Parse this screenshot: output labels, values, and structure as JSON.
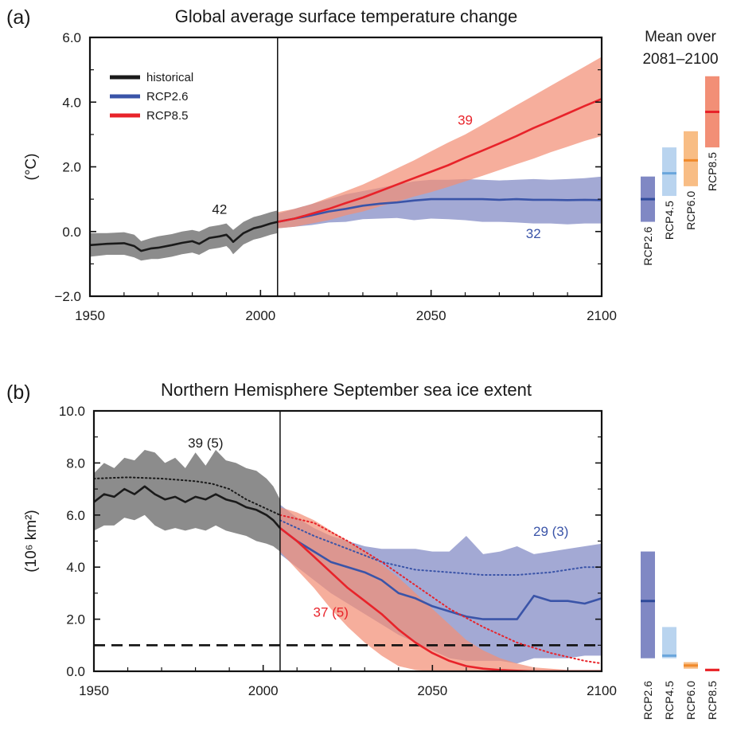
{
  "chart_data": [
    {
      "type": "line",
      "panel_label": "(a)",
      "title": "Global average surface temperature change",
      "ylabel": "(°C)",
      "xlim": [
        1950,
        2100
      ],
      "ylim": [
        -2.0,
        6.0
      ],
      "x_ticks": [
        "1950",
        "2000",
        "2050",
        "2100"
      ],
      "y_ticks": [
        "−2.0",
        "0.0",
        "2.0",
        "4.0",
        "6.0"
      ],
      "y_tick_values": [
        -2,
        0,
        2,
        4,
        6
      ],
      "x_tick_values": [
        1950,
        2000,
        2050,
        2100
      ],
      "divider_year": 2005,
      "legend": {
        "placement": "top-left",
        "entries": [
          {
            "label": "historical",
            "color": "#1a1a1a"
          },
          {
            "label": "RCP2.6",
            "color": "#3a54a8"
          },
          {
            "label": "RCP8.5",
            "color": "#e8232a"
          }
        ]
      },
      "series": [
        {
          "key": "historical",
          "color": "#1a1a1a",
          "band_color": "#8c8c8c",
          "x": [
            1950,
            1955,
            1960,
            1963,
            1965,
            1968,
            1970,
            1974,
            1977,
            1980,
            1982,
            1985,
            1988,
            1990,
            1991,
            1992,
            1995,
            1998,
            2000,
            2003,
            2005
          ],
          "values": [
            -0.42,
            -0.38,
            -0.36,
            -0.45,
            -0.6,
            -0.52,
            -0.5,
            -0.42,
            -0.35,
            -0.3,
            -0.38,
            -0.2,
            -0.15,
            -0.1,
            -0.2,
            -0.32,
            -0.05,
            0.1,
            0.15,
            0.25,
            0.3
          ],
          "band_low": [
            -0.78,
            -0.72,
            -0.72,
            -0.8,
            -0.9,
            -0.85,
            -0.85,
            -0.78,
            -0.7,
            -0.65,
            -0.72,
            -0.55,
            -0.5,
            -0.45,
            -0.55,
            -0.7,
            -0.4,
            -0.25,
            -0.2,
            -0.1,
            -0.05
          ],
          "band_high": [
            -0.05,
            -0.05,
            -0.02,
            -0.1,
            -0.3,
            -0.2,
            -0.15,
            -0.08,
            0.0,
            0.05,
            0.0,
            0.15,
            0.2,
            0.25,
            0.15,
            0.05,
            0.3,
            0.45,
            0.5,
            0.6,
            0.65
          ]
        },
        {
          "key": "RCP2.6",
          "color": "#3a54a8",
          "band_color": "#8088c4",
          "x": [
            2005,
            2010,
            2015,
            2020,
            2025,
            2030,
            2035,
            2040,
            2045,
            2050,
            2055,
            2060,
            2065,
            2070,
            2075,
            2080,
            2085,
            2090,
            2095,
            2100
          ],
          "values": [
            0.3,
            0.4,
            0.5,
            0.62,
            0.7,
            0.8,
            0.86,
            0.9,
            0.96,
            1.0,
            1.0,
            1.0,
            1.0,
            0.98,
            1.0,
            0.98,
            0.98,
            0.97,
            0.98,
            0.97
          ],
          "band_low": [
            0.1,
            0.15,
            0.2,
            0.28,
            0.3,
            0.38,
            0.4,
            0.42,
            0.35,
            0.4,
            0.38,
            0.35,
            0.3,
            0.3,
            0.28,
            0.25,
            0.25,
            0.22,
            0.25,
            0.25
          ],
          "band_high": [
            0.55,
            0.7,
            0.85,
            1.0,
            1.15,
            1.25,
            1.35,
            1.45,
            1.55,
            1.6,
            1.6,
            1.62,
            1.6,
            1.58,
            1.6,
            1.62,
            1.6,
            1.62,
            1.65,
            1.7
          ]
        },
        {
          "key": "RCP8.5",
          "color": "#e8232a",
          "band_color": "#f28f76",
          "x": [
            2005,
            2010,
            2015,
            2020,
            2025,
            2030,
            2035,
            2040,
            2045,
            2050,
            2055,
            2060,
            2065,
            2070,
            2075,
            2080,
            2085,
            2090,
            2095,
            2100
          ],
          "values": [
            0.3,
            0.4,
            0.55,
            0.7,
            0.88,
            1.05,
            1.25,
            1.45,
            1.65,
            1.85,
            2.05,
            2.28,
            2.5,
            2.72,
            2.95,
            3.2,
            3.42,
            3.65,
            3.88,
            4.1
          ],
          "band_low": [
            0.1,
            0.15,
            0.25,
            0.35,
            0.5,
            0.62,
            0.78,
            0.92,
            1.08,
            1.22,
            1.38,
            1.55,
            1.72,
            1.9,
            2.08,
            2.25,
            2.45,
            2.62,
            2.8,
            2.95
          ],
          "band_high": [
            0.6,
            0.7,
            0.85,
            1.05,
            1.25,
            1.45,
            1.7,
            1.95,
            2.2,
            2.48,
            2.75,
            3.0,
            3.3,
            3.6,
            3.9,
            4.2,
            4.5,
            4.8,
            5.1,
            5.4
          ]
        }
      ],
      "annotations": [
        {
          "text": "42",
          "x": 1988,
          "y": 0.55,
          "color": "#1a1a1a"
        },
        {
          "text": "39",
          "x": 2060,
          "y": 3.3,
          "color": "#e8232a"
        },
        {
          "text": "32",
          "x": 2080,
          "y": -0.2,
          "color": "#3a54a8"
        }
      ],
      "side_bars": {
        "title": "Mean over",
        "subtitle": "2081–2100",
        "bars": [
          {
            "label": "RCP2.6",
            "low": 0.3,
            "high": 1.7,
            "mean": 1.0,
            "color": "#8088c4",
            "line_color": "#2e4a9a"
          },
          {
            "label": "RCP4.5",
            "low": 1.1,
            "high": 2.6,
            "mean": 1.8,
            "color": "#b9d4ef",
            "line_color": "#6aa6dc"
          },
          {
            "label": "RCP6.0",
            "low": 1.4,
            "high": 3.1,
            "mean": 2.2,
            "color": "#f8bd85",
            "line_color": "#f08a2b"
          },
          {
            "label": "RCP8.5",
            "low": 2.6,
            "high": 4.8,
            "mean": 3.7,
            "color": "#f28f76",
            "line_color": "#e8232a"
          }
        ]
      }
    },
    {
      "type": "line",
      "panel_label": "(b)",
      "title": "Northern Hemisphere September sea ice extent",
      "ylabel": "(10⁶ km²)",
      "xlim": [
        1950,
        2100
      ],
      "ylim": [
        0.0,
        10.0
      ],
      "x_ticks": [
        "1950",
        "2000",
        "2050",
        "2100"
      ],
      "y_ticks": [
        "0.0",
        "2.0",
        "4.0",
        "6.0",
        "8.0",
        "10.0"
      ],
      "y_tick_values": [
        0,
        2,
        4,
        6,
        8,
        10
      ],
      "x_tick_values": [
        1950,
        2000,
        2050,
        2100
      ],
      "divider_year": 2005,
      "threshold": 1.0,
      "series": [
        {
          "key": "historical",
          "color": "#1a1a1a",
          "band_color": "#8c8c8c",
          "x": [
            1950,
            1953,
            1956,
            1959,
            1962,
            1965,
            1968,
            1971,
            1974,
            1977,
            1980,
            1983,
            1986,
            1989,
            1992,
            1995,
            1998,
            2001,
            2003,
            2005
          ],
          "values": [
            6.5,
            6.8,
            6.7,
            7.0,
            6.8,
            7.1,
            6.8,
            6.6,
            6.7,
            6.5,
            6.7,
            6.6,
            6.8,
            6.6,
            6.5,
            6.3,
            6.2,
            6.0,
            5.8,
            5.5
          ],
          "band_low": [
            5.4,
            5.6,
            5.6,
            5.9,
            5.8,
            6.0,
            5.6,
            5.4,
            5.5,
            5.4,
            5.5,
            5.4,
            5.6,
            5.4,
            5.3,
            5.2,
            5.0,
            4.9,
            4.8,
            4.6
          ],
          "band_high": [
            7.6,
            8.0,
            7.8,
            8.2,
            8.1,
            8.5,
            8.4,
            8.0,
            8.2,
            7.8,
            8.4,
            7.9,
            8.5,
            8.1,
            8.0,
            7.8,
            7.7,
            7.4,
            7.1,
            6.6
          ]
        },
        {
          "key": "historical-observed",
          "style": "dotted",
          "color": "#1a1a1a",
          "x": [
            1950,
            1960,
            1970,
            1980,
            1985,
            1990,
            1995,
            2000,
            2005
          ],
          "values": [
            7.4,
            7.45,
            7.4,
            7.3,
            7.2,
            7.0,
            6.6,
            6.3,
            6.0
          ]
        },
        {
          "key": "RCP2.6",
          "color": "#3a54a8",
          "band_color": "#8088c4",
          "x": [
            2005,
            2010,
            2015,
            2020,
            2025,
            2030,
            2035,
            2040,
            2045,
            2050,
            2055,
            2060,
            2065,
            2070,
            2075,
            2080,
            2085,
            2090,
            2095,
            2100
          ],
          "values": [
            5.5,
            5.0,
            4.6,
            4.2,
            4.0,
            3.8,
            3.5,
            3.0,
            2.8,
            2.5,
            2.3,
            2.1,
            2.0,
            2.0,
            2.0,
            2.9,
            2.7,
            2.7,
            2.6,
            2.8
          ],
          "band_low": [
            4.5,
            4.0,
            3.5,
            3.0,
            2.6,
            2.2,
            1.8,
            1.4,
            1.1,
            0.8,
            0.5,
            0.4,
            0.4,
            0.4,
            0.3,
            0.5,
            0.5,
            0.5,
            0.6,
            0.6
          ],
          "band_high": [
            6.4,
            5.9,
            5.5,
            5.2,
            5.0,
            4.8,
            4.7,
            4.7,
            4.7,
            4.6,
            4.6,
            5.2,
            4.5,
            4.6,
            4.8,
            4.5,
            4.6,
            4.7,
            4.8,
            4.9
          ]
        },
        {
          "key": "RCP2.6-dotted",
          "style": "dotted",
          "color": "#3a54a8",
          "x": [
            2005,
            2015,
            2025,
            2035,
            2045,
            2055,
            2065,
            2075,
            2085,
            2095,
            2100
          ],
          "values": [
            5.8,
            5.2,
            4.7,
            4.2,
            3.9,
            3.8,
            3.7,
            3.7,
            3.8,
            4.0,
            4.0
          ]
        },
        {
          "key": "RCP8.5",
          "color": "#e8232a",
          "band_color": "#f28f76",
          "x": [
            2005,
            2010,
            2015,
            2020,
            2025,
            2030,
            2035,
            2040,
            2045,
            2050,
            2055,
            2060,
            2065,
            2070,
            2075,
            2080,
            2090,
            2100
          ],
          "values": [
            5.5,
            5.0,
            4.4,
            3.8,
            3.2,
            2.7,
            2.2,
            1.6,
            1.1,
            0.7,
            0.4,
            0.2,
            0.1,
            0.05,
            0.02,
            0.0,
            0.0,
            0.0
          ],
          "band_low": [
            4.6,
            3.9,
            3.2,
            2.4,
            1.7,
            1.1,
            0.6,
            0.2,
            0.05,
            0.0,
            0.0,
            0.0,
            0.0,
            0.0,
            0.0,
            0.0,
            0.0,
            0.0
          ],
          "band_high": [
            6.3,
            6.1,
            5.8,
            5.4,
            5.0,
            4.6,
            4.1,
            3.6,
            3.0,
            2.4,
            1.8,
            1.2,
            0.8,
            0.5,
            0.3,
            0.15,
            0.05,
            0.05
          ]
        },
        {
          "key": "RCP8.5-dotted",
          "style": "dotted",
          "color": "#e8232a",
          "x": [
            2005,
            2015,
            2025,
            2035,
            2045,
            2055,
            2065,
            2075,
            2085,
            2095,
            2100
          ],
          "values": [
            6.0,
            5.7,
            5.0,
            4.2,
            3.3,
            2.4,
            1.7,
            1.1,
            0.7,
            0.4,
            0.3
          ]
        }
      ],
      "annotations": [
        {
          "text": "39 (5)",
          "x": 1983,
          "y": 8.6,
          "color": "#1a1a1a"
        },
        {
          "text": "29 (3)",
          "x": 2085,
          "y": 5.2,
          "color": "#3a54a8"
        },
        {
          "text": "37 (5)",
          "x": 2020,
          "y": 2.1,
          "color": "#e8232a"
        }
      ],
      "side_bars": {
        "bars": [
          {
            "label": "RCP2.6",
            "low": 0.5,
            "high": 4.6,
            "mean": 2.7,
            "color": "#8088c4",
            "line_color": "#2e4a9a"
          },
          {
            "label": "RCP4.5",
            "low": 0.5,
            "high": 1.7,
            "mean": 0.6,
            "color": "#b9d4ef",
            "line_color": "#6aa6dc"
          },
          {
            "label": "RCP6.0",
            "low": 0.1,
            "high": 0.35,
            "mean": 0.22,
            "color": "#f8bd85",
            "line_color": "#f08a2b"
          },
          {
            "label": "RCP8.5",
            "low": 0.0,
            "high": 0.1,
            "mean": 0.05,
            "color": "#f28f76",
            "line_color": "#e8232a"
          }
        ]
      }
    }
  ]
}
